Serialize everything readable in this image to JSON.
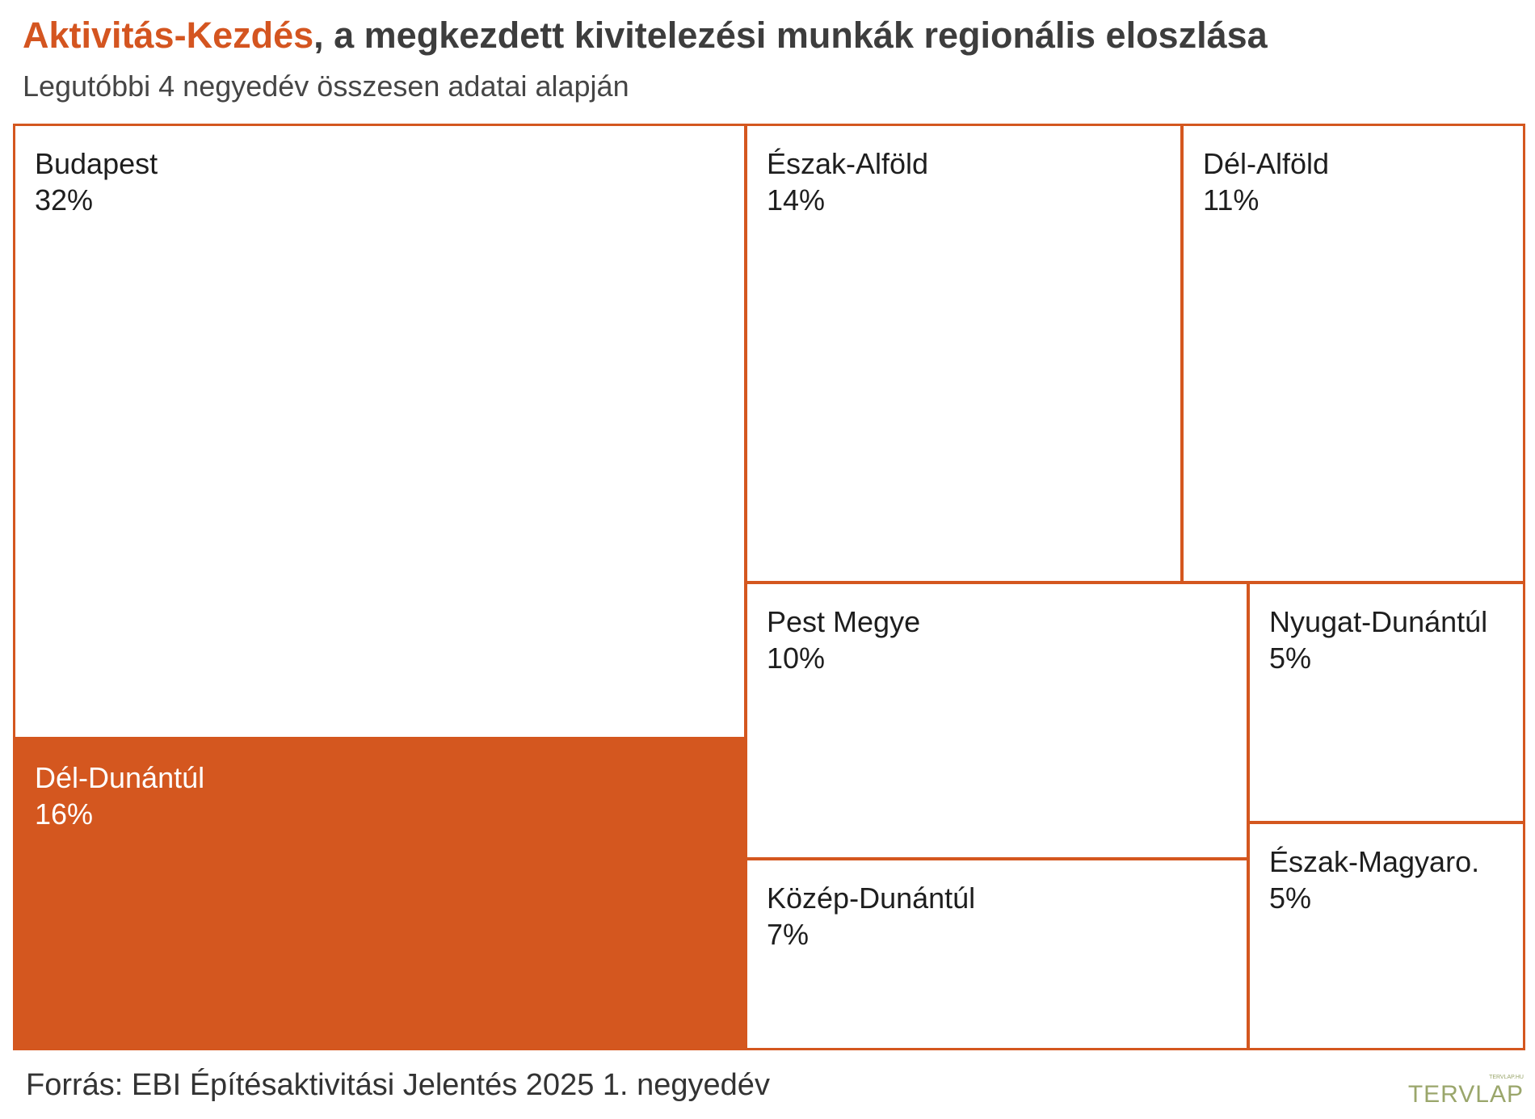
{
  "header": {
    "title_accent": "Aktivitás-Kezdés",
    "title_rest": ", a megkezdett kivitelezési munkák regionális eloszlása",
    "subtitle": "Legutóbbi 4 negyedév összesen adatai alapján"
  },
  "chart_data": {
    "type": "treemap",
    "unit": "%",
    "regions": [
      {
        "name": "Budapest",
        "value": 32,
        "label": "32%",
        "highlighted": false
      },
      {
        "name": "Dél-Dunántúl",
        "value": 16,
        "label": "16%",
        "highlighted": true
      },
      {
        "name": "Észak-Alföld",
        "value": 14,
        "label": "14%",
        "highlighted": false
      },
      {
        "name": "Dél-Alföld",
        "value": 11,
        "label": "11%",
        "highlighted": false
      },
      {
        "name": "Pest Megye",
        "value": 10,
        "label": "10%",
        "highlighted": false
      },
      {
        "name": "Közép-Dunántúl",
        "value": 7,
        "label": "7%",
        "highlighted": false
      },
      {
        "name": "Nyugat-Dunántúl",
        "value": 5,
        "label": "5%",
        "highlighted": false
      },
      {
        "name": "Észak-Magyaro.",
        "value": 5,
        "label": "5%",
        "highlighted": false
      }
    ]
  },
  "colors": {
    "accent": "#d4571f",
    "cell_background": "#ffffff",
    "highlight_text": "#ffffff"
  },
  "footer": {
    "source": "Forrás: EBI Építésaktivitási Jelentés 2025 1. negyedév",
    "logo": "TERVLAP",
    "logo_small": "TERVLAP.HU"
  }
}
